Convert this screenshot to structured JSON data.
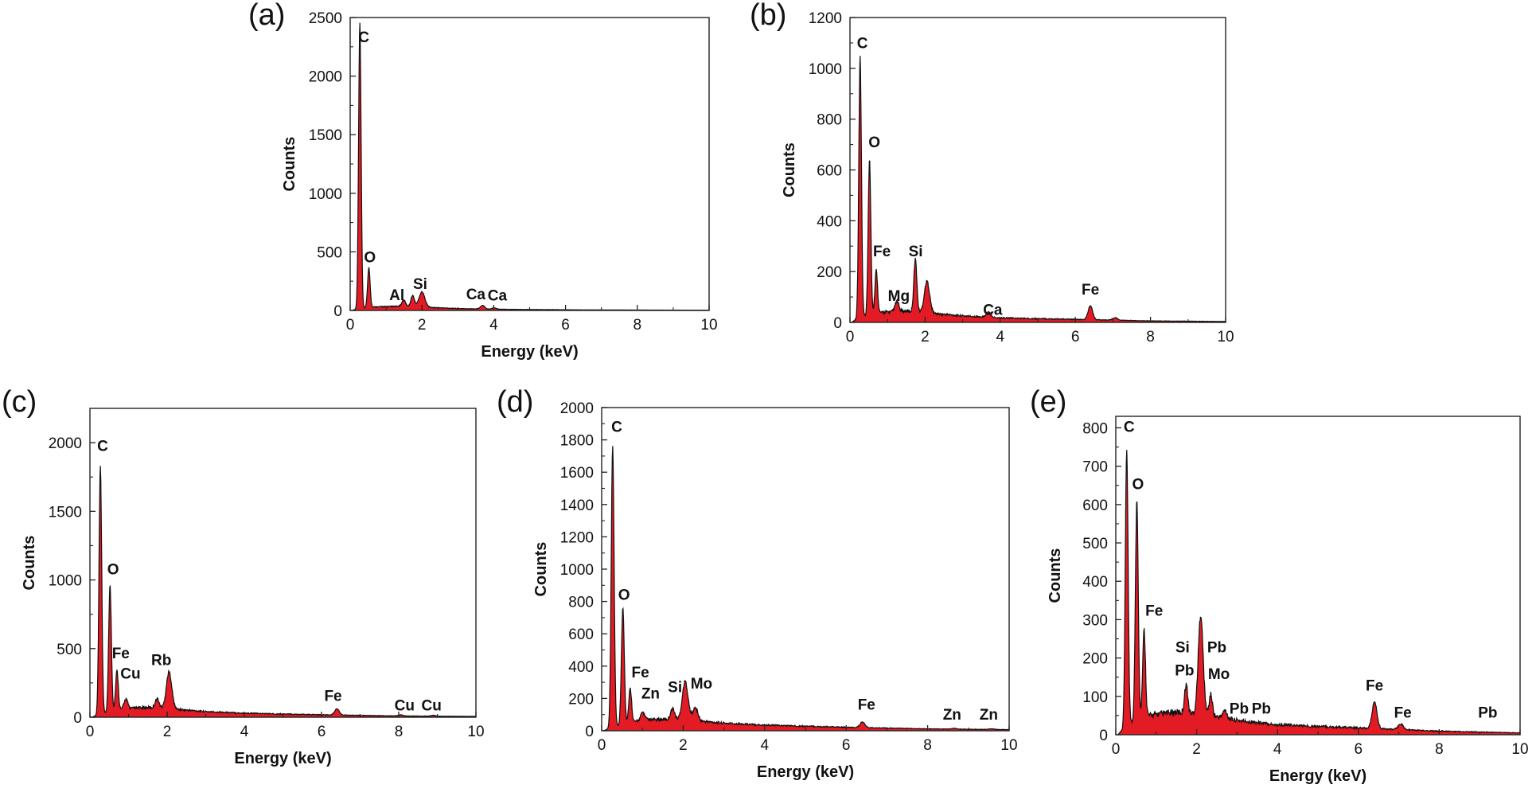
{
  "chart_data": [
    {
      "panel_letter": "(a)",
      "type": "area",
      "xlabel": "Energy (keV)",
      "ylabel": "Counts",
      "xlim": [
        0,
        10
      ],
      "ylim": [
        0,
        2500
      ],
      "xticks": [
        0,
        2,
        4,
        6,
        8,
        10
      ],
      "yticks": [
        0,
        500,
        1000,
        1500,
        2000,
        2500
      ],
      "baseline": [
        [
          0.05,
          0
        ],
        [
          0.15,
          8
        ],
        [
          0.6,
          25
        ],
        [
          1.0,
          28
        ],
        [
          1.5,
          30
        ],
        [
          2.2,
          22
        ],
        [
          3,
          14
        ],
        [
          4,
          9
        ],
        [
          6,
          5
        ],
        [
          8,
          3
        ],
        [
          10,
          2
        ]
      ],
      "peaks": [
        {
          "x": 0.27,
          "y": 2440,
          "w": 0.035
        },
        {
          "x": 0.52,
          "y": 340,
          "w": 0.035
        },
        {
          "x": 1.49,
          "y": 55,
          "w": 0.05
        },
        {
          "x": 1.74,
          "y": 95,
          "w": 0.05
        },
        {
          "x": 2.0,
          "y": 130,
          "w": 0.08
        },
        {
          "x": 3.69,
          "y": 30,
          "w": 0.06
        },
        {
          "x": 4.01,
          "y": 12,
          "w": 0.06
        }
      ],
      "labels": [
        {
          "text": "C",
          "x": 0.38,
          "y": 2290
        },
        {
          "text": "O",
          "x": 0.55,
          "y": 410
        },
        {
          "text": "Al",
          "x": 1.3,
          "y": 90
        },
        {
          "text": "Si",
          "x": 1.95,
          "y": 185
        },
        {
          "text": "Ca",
          "x": 3.5,
          "y": 95
        },
        {
          "text": "Ca",
          "x": 4.1,
          "y": 85
        }
      ]
    },
    {
      "panel_letter": "(b)",
      "type": "area",
      "xlabel": "",
      "ylabel": "Counts",
      "xlim": [
        0,
        10
      ],
      "ylim": [
        0,
        1200
      ],
      "xticks": [
        0,
        2,
        4,
        6,
        8,
        10
      ],
      "yticks": [
        0,
        200,
        400,
        600,
        800,
        1000,
        1200
      ],
      "baseline": [
        [
          0.05,
          0
        ],
        [
          0.15,
          10
        ],
        [
          0.6,
          30
        ],
        [
          1.0,
          35
        ],
        [
          1.5,
          38
        ],
        [
          2.2,
          30
        ],
        [
          3,
          22
        ],
        [
          4,
          15
        ],
        [
          6,
          10
        ],
        [
          8,
          5
        ],
        [
          10,
          3
        ]
      ],
      "peaks": [
        {
          "x": 0.27,
          "y": 1030,
          "w": 0.035
        },
        {
          "x": 0.52,
          "y": 610,
          "w": 0.035
        },
        {
          "x": 0.7,
          "y": 170,
          "w": 0.035
        },
        {
          "x": 1.25,
          "y": 40,
          "w": 0.05
        },
        {
          "x": 1.74,
          "y": 210,
          "w": 0.04
        },
        {
          "x": 2.05,
          "y": 125,
          "w": 0.07
        },
        {
          "x": 3.69,
          "y": 20,
          "w": 0.06
        },
        {
          "x": 6.4,
          "y": 55,
          "w": 0.06
        },
        {
          "x": 7.06,
          "y": 10,
          "w": 0.06
        }
      ],
      "labels": [
        {
          "text": "C",
          "x": 0.33,
          "y": 1080
        },
        {
          "text": "O",
          "x": 0.65,
          "y": 690
        },
        {
          "text": "Fe",
          "x": 0.85,
          "y": 260
        },
        {
          "text": "Mg",
          "x": 1.3,
          "y": 85
        },
        {
          "text": "Si",
          "x": 1.75,
          "y": 260
        },
        {
          "text": "Ca",
          "x": 3.8,
          "y": 30
        },
        {
          "text": "Fe",
          "x": 6.4,
          "y": 110
        }
      ]
    },
    {
      "panel_letter": "(c)",
      "type": "area",
      "xlabel": "Energy (keV)",
      "ylabel": "Counts",
      "xlim": [
        0,
        10
      ],
      "ylim": [
        0,
        2250
      ],
      "xticks": [
        0,
        2,
        4,
        6,
        8,
        10
      ],
      "yticks": [
        0,
        500,
        1000,
        1500,
        2000
      ],
      "baseline": [
        [
          0.05,
          0
        ],
        [
          0.15,
          10
        ],
        [
          0.6,
          40
        ],
        [
          1.0,
          55
        ],
        [
          1.5,
          60
        ],
        [
          2.2,
          50
        ],
        [
          3,
          35
        ],
        [
          4,
          25
        ],
        [
          6,
          15
        ],
        [
          8,
          8
        ],
        [
          10,
          5
        ]
      ],
      "peaks": [
        {
          "x": 0.27,
          "y": 1810,
          "w": 0.035
        },
        {
          "x": 0.52,
          "y": 920,
          "w": 0.035
        },
        {
          "x": 0.7,
          "y": 290,
          "w": 0.035
        },
        {
          "x": 0.93,
          "y": 70,
          "w": 0.05
        },
        {
          "x": 1.74,
          "y": 70,
          "w": 0.05
        },
        {
          "x": 2.05,
          "y": 270,
          "w": 0.07
        },
        {
          "x": 6.4,
          "y": 45,
          "w": 0.06
        },
        {
          "x": 8.05,
          "y": 8,
          "w": 0.06
        },
        {
          "x": 8.9,
          "y": 6,
          "w": 0.06
        }
      ],
      "labels": [
        {
          "text": "C",
          "x": 0.33,
          "y": 1940
        },
        {
          "text": "O",
          "x": 0.6,
          "y": 1040
        },
        {
          "text": "Fe",
          "x": 0.8,
          "y": 430
        },
        {
          "text": "Cu",
          "x": 1.05,
          "y": 280
        },
        {
          "text": "Rb",
          "x": 1.85,
          "y": 380
        },
        {
          "text": "Fe",
          "x": 6.3,
          "y": 120
        },
        {
          "text": "Cu",
          "x": 8.15,
          "y": 50
        },
        {
          "text": "Cu",
          "x": 8.85,
          "y": 50
        }
      ]
    },
    {
      "panel_letter": "(d)",
      "type": "area",
      "xlabel": "Energy (keV)",
      "ylabel": "Counts",
      "xlim": [
        0,
        10
      ],
      "ylim": [
        0,
        2000
      ],
      "xticks": [
        0,
        2,
        4,
        6,
        8,
        10
      ],
      "yticks": [
        0,
        200,
        400,
        600,
        800,
        1000,
        1200,
        1400,
        1600,
        1800,
        2000
      ],
      "baseline": [
        [
          0.05,
          0
        ],
        [
          0.15,
          10
        ],
        [
          0.6,
          40
        ],
        [
          1.0,
          55
        ],
        [
          1.5,
          60
        ],
        [
          2.2,
          55
        ],
        [
          3,
          40
        ],
        [
          4,
          30
        ],
        [
          6,
          18
        ],
        [
          8,
          10
        ],
        [
          10,
          6
        ]
      ],
      "peaks": [
        {
          "x": 0.27,
          "y": 1740,
          "w": 0.035
        },
        {
          "x": 0.52,
          "y": 720,
          "w": 0.035
        },
        {
          "x": 0.7,
          "y": 210,
          "w": 0.035
        },
        {
          "x": 1.01,
          "y": 50,
          "w": 0.05
        },
        {
          "x": 1.74,
          "y": 70,
          "w": 0.05
        },
        {
          "x": 2.05,
          "y": 240,
          "w": 0.07
        },
        {
          "x": 2.3,
          "y": 80,
          "w": 0.06
        },
        {
          "x": 6.4,
          "y": 35,
          "w": 0.06
        },
        {
          "x": 8.64,
          "y": 5,
          "w": 0.06
        },
        {
          "x": 9.57,
          "y": 4,
          "w": 0.06
        }
      ],
      "labels": [
        {
          "text": "C",
          "x": 0.37,
          "y": 1850
        },
        {
          "text": "O",
          "x": 0.55,
          "y": 810
        },
        {
          "text": "Fe",
          "x": 0.95,
          "y": 330
        },
        {
          "text": "Zn",
          "x": 1.2,
          "y": 200
        },
        {
          "text": "Si",
          "x": 1.8,
          "y": 240
        },
        {
          "text": "Mo",
          "x": 2.45,
          "y": 260
        },
        {
          "text": "Fe",
          "x": 6.5,
          "y": 130
        },
        {
          "text": "Zn",
          "x": 8.6,
          "y": 70
        },
        {
          "text": "Zn",
          "x": 9.5,
          "y": 70
        }
      ]
    },
    {
      "panel_letter": "(e)",
      "type": "area",
      "xlabel": "Energy (keV)",
      "ylabel": "Counts",
      "xlim": [
        0,
        10
      ],
      "ylim": [
        0,
        830
      ],
      "xticks": [
        0,
        2,
        4,
        6,
        8,
        10
      ],
      "yticks": [
        0,
        100,
        200,
        300,
        400,
        500,
        600,
        700,
        800
      ],
      "baseline": [
        [
          0.05,
          0
        ],
        [
          0.15,
          10
        ],
        [
          0.6,
          40
        ],
        [
          1.0,
          45
        ],
        [
          1.5,
          50
        ],
        [
          2.2,
          45
        ],
        [
          3,
          32
        ],
        [
          4,
          22
        ],
        [
          6,
          15
        ],
        [
          8,
          8
        ],
        [
          10,
          4
        ]
      ],
      "peaks": [
        {
          "x": 0.27,
          "y": 720,
          "w": 0.035
        },
        {
          "x": 0.52,
          "y": 570,
          "w": 0.035
        },
        {
          "x": 0.7,
          "y": 225,
          "w": 0.035
        },
        {
          "x": 1.74,
          "y": 75,
          "w": 0.04
        },
        {
          "x": 2.1,
          "y": 260,
          "w": 0.06
        },
        {
          "x": 2.35,
          "y": 55,
          "w": 0.04
        },
        {
          "x": 2.7,
          "y": 20,
          "w": 0.05
        },
        {
          "x": 6.4,
          "y": 70,
          "w": 0.06
        },
        {
          "x": 7.05,
          "y": 15,
          "w": 0.06
        }
      ],
      "labels": [
        {
          "text": "C",
          "x": 0.33,
          "y": 790
        },
        {
          "text": "O",
          "x": 0.55,
          "y": 640
        },
        {
          "text": "Fe",
          "x": 0.95,
          "y": 310
        },
        {
          "text": "Si",
          "x": 1.65,
          "y": 215
        },
        {
          "text": "Pb",
          "x": 1.7,
          "y": 155
        },
        {
          "text": "Pb",
          "x": 2.5,
          "y": 215
        },
        {
          "text": "Mo",
          "x": 2.55,
          "y": 145
        },
        {
          "text": "Pb",
          "x": 3.05,
          "y": 55
        },
        {
          "text": "Pb",
          "x": 3.6,
          "y": 55
        },
        {
          "text": "Fe",
          "x": 6.4,
          "y": 115
        },
        {
          "text": "Fe",
          "x": 7.1,
          "y": 45
        },
        {
          "text": "Pb",
          "x": 9.2,
          "y": 45
        }
      ]
    }
  ]
}
